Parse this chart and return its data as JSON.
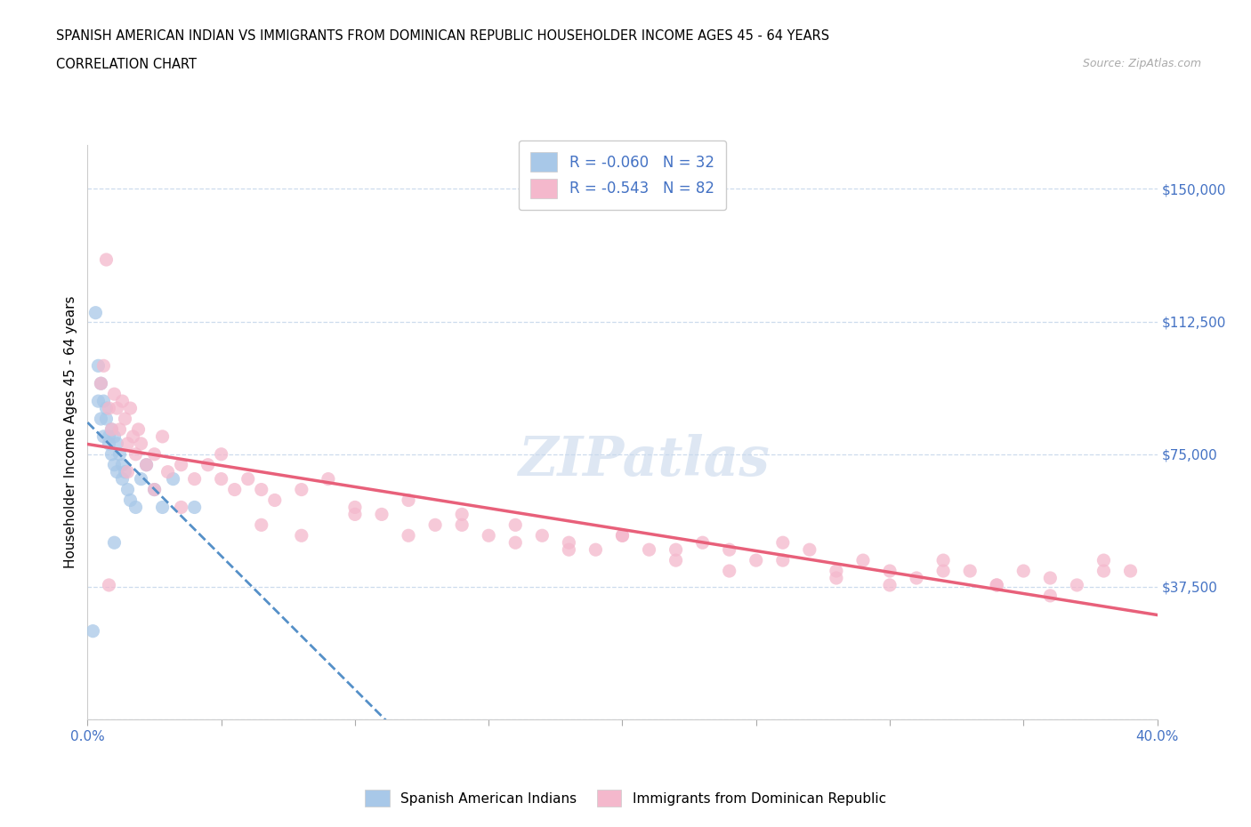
{
  "title_line1": "SPANISH AMERICAN INDIAN VS IMMIGRANTS FROM DOMINICAN REPUBLIC HOUSEHOLDER INCOME AGES 45 - 64 YEARS",
  "title_line2": "CORRELATION CHART",
  "source_text": "Source: ZipAtlas.com",
  "watermark": "ZIPatlas",
  "ylabel": "Householder Income Ages 45 - 64 years",
  "xlim": [
    0.0,
    0.4
  ],
  "ylim": [
    0,
    162500
  ],
  "x_ticks": [
    0.0,
    0.05,
    0.1,
    0.15,
    0.2,
    0.25,
    0.3,
    0.35,
    0.4
  ],
  "y_ticks": [
    0,
    37500,
    75000,
    112500,
    150000
  ],
  "y_tick_labels": [
    "",
    "$37,500",
    "$75,000",
    "$112,500",
    "$150,000"
  ],
  "legend_R1": "-0.060",
  "legend_N1": "32",
  "legend_R2": "-0.543",
  "legend_N2": "82",
  "color_blue": "#a8c8e8",
  "color_pink": "#f4b8cc",
  "color_blue_line": "#5590c8",
  "color_pink_line": "#e8607a",
  "color_axis_labels": "#4472c4",
  "color_grid": "#c8d8ec",
  "background_color": "#ffffff",
  "legend_label1": "Spanish American Indians",
  "legend_label2": "Immigrants from Dominican Republic",
  "blue_x": [
    0.002,
    0.003,
    0.004,
    0.004,
    0.005,
    0.005,
    0.006,
    0.006,
    0.007,
    0.007,
    0.008,
    0.008,
    0.009,
    0.009,
    0.01,
    0.01,
    0.011,
    0.011,
    0.012,
    0.013,
    0.013,
    0.014,
    0.015,
    0.016,
    0.018,
    0.02,
    0.022,
    0.025,
    0.028,
    0.032,
    0.04,
    0.01
  ],
  "blue_y": [
    25000,
    115000,
    90000,
    100000,
    85000,
    95000,
    80000,
    90000,
    85000,
    88000,
    80000,
    78000,
    82000,
    75000,
    80000,
    72000,
    78000,
    70000,
    75000,
    72000,
    68000,
    70000,
    65000,
    62000,
    60000,
    68000,
    72000,
    65000,
    60000,
    68000,
    60000,
    50000
  ],
  "pink_x": [
    0.005,
    0.006,
    0.007,
    0.008,
    0.009,
    0.01,
    0.011,
    0.012,
    0.013,
    0.014,
    0.015,
    0.016,
    0.017,
    0.018,
    0.019,
    0.02,
    0.022,
    0.025,
    0.028,
    0.03,
    0.035,
    0.04,
    0.045,
    0.05,
    0.055,
    0.06,
    0.065,
    0.07,
    0.08,
    0.09,
    0.1,
    0.11,
    0.12,
    0.13,
    0.14,
    0.15,
    0.16,
    0.17,
    0.18,
    0.19,
    0.2,
    0.21,
    0.22,
    0.23,
    0.24,
    0.25,
    0.26,
    0.27,
    0.28,
    0.29,
    0.3,
    0.31,
    0.32,
    0.33,
    0.34,
    0.35,
    0.36,
    0.37,
    0.38,
    0.39,
    0.015,
    0.025,
    0.035,
    0.05,
    0.065,
    0.08,
    0.1,
    0.12,
    0.14,
    0.16,
    0.18,
    0.2,
    0.22,
    0.24,
    0.26,
    0.28,
    0.3,
    0.32,
    0.34,
    0.36,
    0.38,
    0.008
  ],
  "pink_y": [
    95000,
    100000,
    130000,
    88000,
    82000,
    92000,
    88000,
    82000,
    90000,
    85000,
    78000,
    88000,
    80000,
    75000,
    82000,
    78000,
    72000,
    75000,
    80000,
    70000,
    72000,
    68000,
    72000,
    75000,
    65000,
    68000,
    65000,
    62000,
    65000,
    68000,
    60000,
    58000,
    62000,
    55000,
    58000,
    52000,
    55000,
    52000,
    50000,
    48000,
    52000,
    48000,
    45000,
    50000,
    48000,
    45000,
    50000,
    48000,
    42000,
    45000,
    42000,
    40000,
    45000,
    42000,
    38000,
    42000,
    40000,
    38000,
    45000,
    42000,
    70000,
    65000,
    60000,
    68000,
    55000,
    52000,
    58000,
    52000,
    55000,
    50000,
    48000,
    52000,
    48000,
    42000,
    45000,
    40000,
    38000,
    42000,
    38000,
    35000,
    42000,
    38000
  ]
}
